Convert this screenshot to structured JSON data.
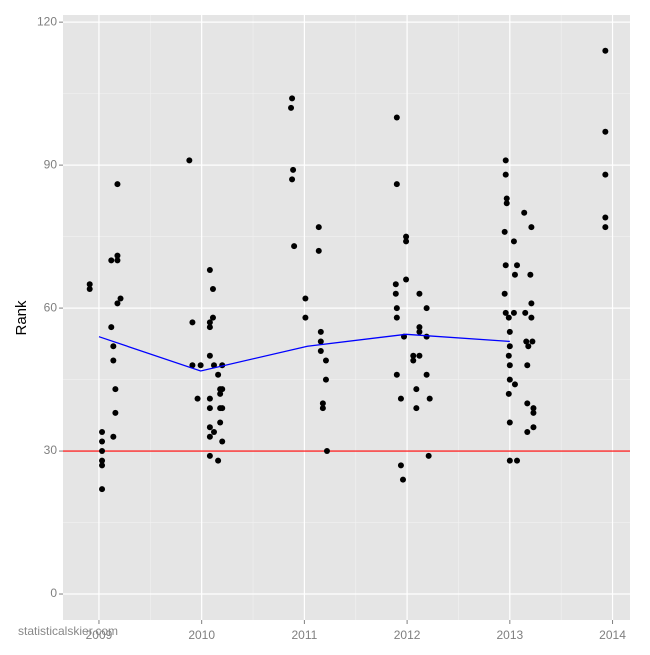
{
  "chart_data": {
    "type": "scatter",
    "y_label": "Rank",
    "watermark": "statisticalskier.com",
    "xlim": [
      2008.65,
      2014.17
    ],
    "ylim": [
      -5.45,
      121.5
    ],
    "xticks": [
      2009,
      2010,
      2011,
      2012,
      2013,
      2014
    ],
    "yticks": [
      0,
      30,
      60,
      90,
      120
    ],
    "grid": true,
    "minor_grid": true,
    "series": [
      {
        "type": "scatter",
        "color": "#000000",
        "x": [
          2008.91,
          2008.91,
          2009.03,
          2009.03,
          2009.03,
          2009.03,
          2009.03,
          2009.03,
          2009.12,
          2009.12,
          2009.14,
          2009.14,
          2009.14,
          2009.16,
          2009.16,
          2009.18,
          2009.18,
          2009.18,
          2009.18,
          2009.21,
          2009.88,
          2009.91,
          2009.91,
          2009.96,
          2009.99,
          2010.08,
          2010.08,
          2010.08,
          2010.08,
          2010.08,
          2010.08,
          2010.08,
          2010.08,
          2010.08,
          2010.11,
          2010.11,
          2010.12,
          2010.12,
          2010.16,
          2010.16,
          2010.18,
          2010.18,
          2010.18,
          2010.18,
          2010.2,
          2010.2,
          2010.2,
          2010.2,
          2010.88,
          2010.87,
          2010.89,
          2010.88,
          2010.9,
          2011.01,
          2011.01,
          2011.14,
          2011.14,
          2011.16,
          2011.16,
          2011.16,
          2011.21,
          2011.21,
          2011.18,
          2011.18,
          2011.22,
          2011.9,
          2011.9,
          2011.89,
          2011.89,
          2011.9,
          2011.9,
          2011.9,
          2011.94,
          2011.94,
          2011.96,
          2011.99,
          2011.99,
          2011.99,
          2011.97,
          2012.06,
          2012.06,
          2012.09,
          2012.09,
          2012.12,
          2012.12,
          2012.12,
          2012.12,
          2012.19,
          2012.19,
          2012.19,
          2012.22,
          2012.21,
          2012.96,
          2012.96,
          2012.97,
          2012.97,
          2012.95,
          2012.96,
          2012.95,
          2012.96,
          2012.99,
          2013.0,
          2013.0,
          2012.99,
          2013.0,
          2013.0,
          2012.99,
          2013.0,
          2013.0,
          2013.04,
          2013.05,
          2013.07,
          2013.04,
          2013.05,
          2013.07,
          2013.14,
          2013.15,
          2013.16,
          2013.18,
          2013.17,
          2013.17,
          2013.17,
          2013.21,
          2013.2,
          2013.21,
          2013.21,
          2013.22,
          2013.23,
          2013.23,
          2013.23,
          2013.93,
          2013.93,
          2013.93,
          2013.93,
          2013.93
        ],
        "values": [
          65,
          64,
          34,
          32,
          30,
          28,
          27,
          22,
          70,
          56,
          52,
          49,
          33,
          43,
          38,
          86,
          71,
          70,
          61,
          62,
          91,
          57,
          48,
          41,
          48,
          68,
          57,
          56,
          50,
          41,
          39,
          35,
          33,
          29,
          64,
          58,
          48,
          34,
          46,
          28,
          43,
          42,
          39,
          36,
          48,
          43,
          39,
          32,
          104,
          102,
          89,
          87,
          73,
          62,
          58,
          77,
          72,
          55,
          53,
          51,
          49,
          45,
          40,
          39,
          30,
          100,
          86,
          65,
          63,
          60,
          58,
          46,
          41,
          27,
          24,
          75,
          74,
          66,
          54,
          50,
          49,
          43,
          39,
          63,
          56,
          55,
          50,
          60,
          54,
          46,
          41,
          29,
          91,
          88,
          83,
          82,
          76,
          69,
          63,
          59,
          58,
          55,
          52,
          50,
          48,
          45,
          42,
          36,
          28,
          74,
          67,
          69,
          59,
          44,
          28,
          80,
          59,
          53,
          52,
          48,
          40,
          34,
          77,
          67,
          61,
          58,
          53,
          39,
          38,
          35,
          114,
          97,
          88,
          79,
          77
        ]
      },
      {
        "type": "line",
        "color": "#0000ff",
        "x": [
          2009.0,
          2009.99,
          2011.03,
          2011.99,
          2013.0
        ],
        "values": [
          54,
          46.8,
          52,
          54.5,
          53
        ]
      }
    ],
    "hlines": [
      {
        "value": 30,
        "color": "#ff0000"
      }
    ]
  }
}
